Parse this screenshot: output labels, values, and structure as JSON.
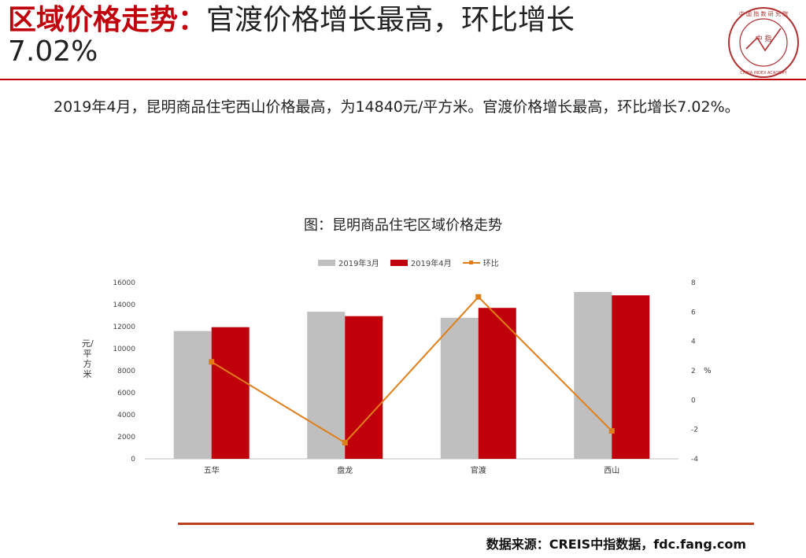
{
  "header": {
    "title_red": "区域价格走势：",
    "title_rest": "官渡价格增长最高，环比增长",
    "title_line2": "7.02%"
  },
  "logo": {
    "icon": "china-index-academy-seal-icon",
    "center_chars": "中 指",
    "ring_text": "中 国 指 数 研 究 院",
    "english": "CHINA INDEX ACADEMY"
  },
  "body": {
    "paragraph": "2019年4月，昆明商品住宅西山价格最高，为14840元/平方米。官渡价格增长最高，环比增长7.02%。"
  },
  "chart_heading": "图：昆明商品住宅区域价格走势",
  "footer": {
    "source": "数据来源：CREIS中指数据，fdc.fang.com"
  },
  "colors": {
    "accent_red": "#c0000b",
    "bar_march": "#bfbfbf",
    "bar_april": "#c0000b",
    "line": "#e07f1a"
  },
  "chart_data": {
    "type": "bar",
    "title": "图：昆明商品住宅区域价格走势",
    "categories": [
      "五华",
      "盘龙",
      "官渡",
      "西山"
    ],
    "series": [
      {
        "name": "2019年3月",
        "type": "bar",
        "values": [
          11600,
          13350,
          12800,
          15150
        ]
      },
      {
        "name": "2019年4月",
        "type": "bar",
        "values": [
          11950,
          12950,
          13700,
          14840
        ]
      },
      {
        "name": "环比",
        "type": "line",
        "axis": "right",
        "values": [
          2.6,
          -2.9,
          7.02,
          -2.1
        ]
      }
    ],
    "ylabel": "元/平方米",
    "ylabel_right": "%",
    "ylim": [
      0,
      16000
    ],
    "ylim_right": [
      -4,
      8
    ],
    "yticks": [
      0,
      2000,
      4000,
      6000,
      8000,
      10000,
      12000,
      14000,
      16000
    ],
    "yticks_right": [
      -4,
      -2,
      0,
      2,
      4,
      6,
      8
    ],
    "legend_position": "top-center",
    "grid": false
  }
}
